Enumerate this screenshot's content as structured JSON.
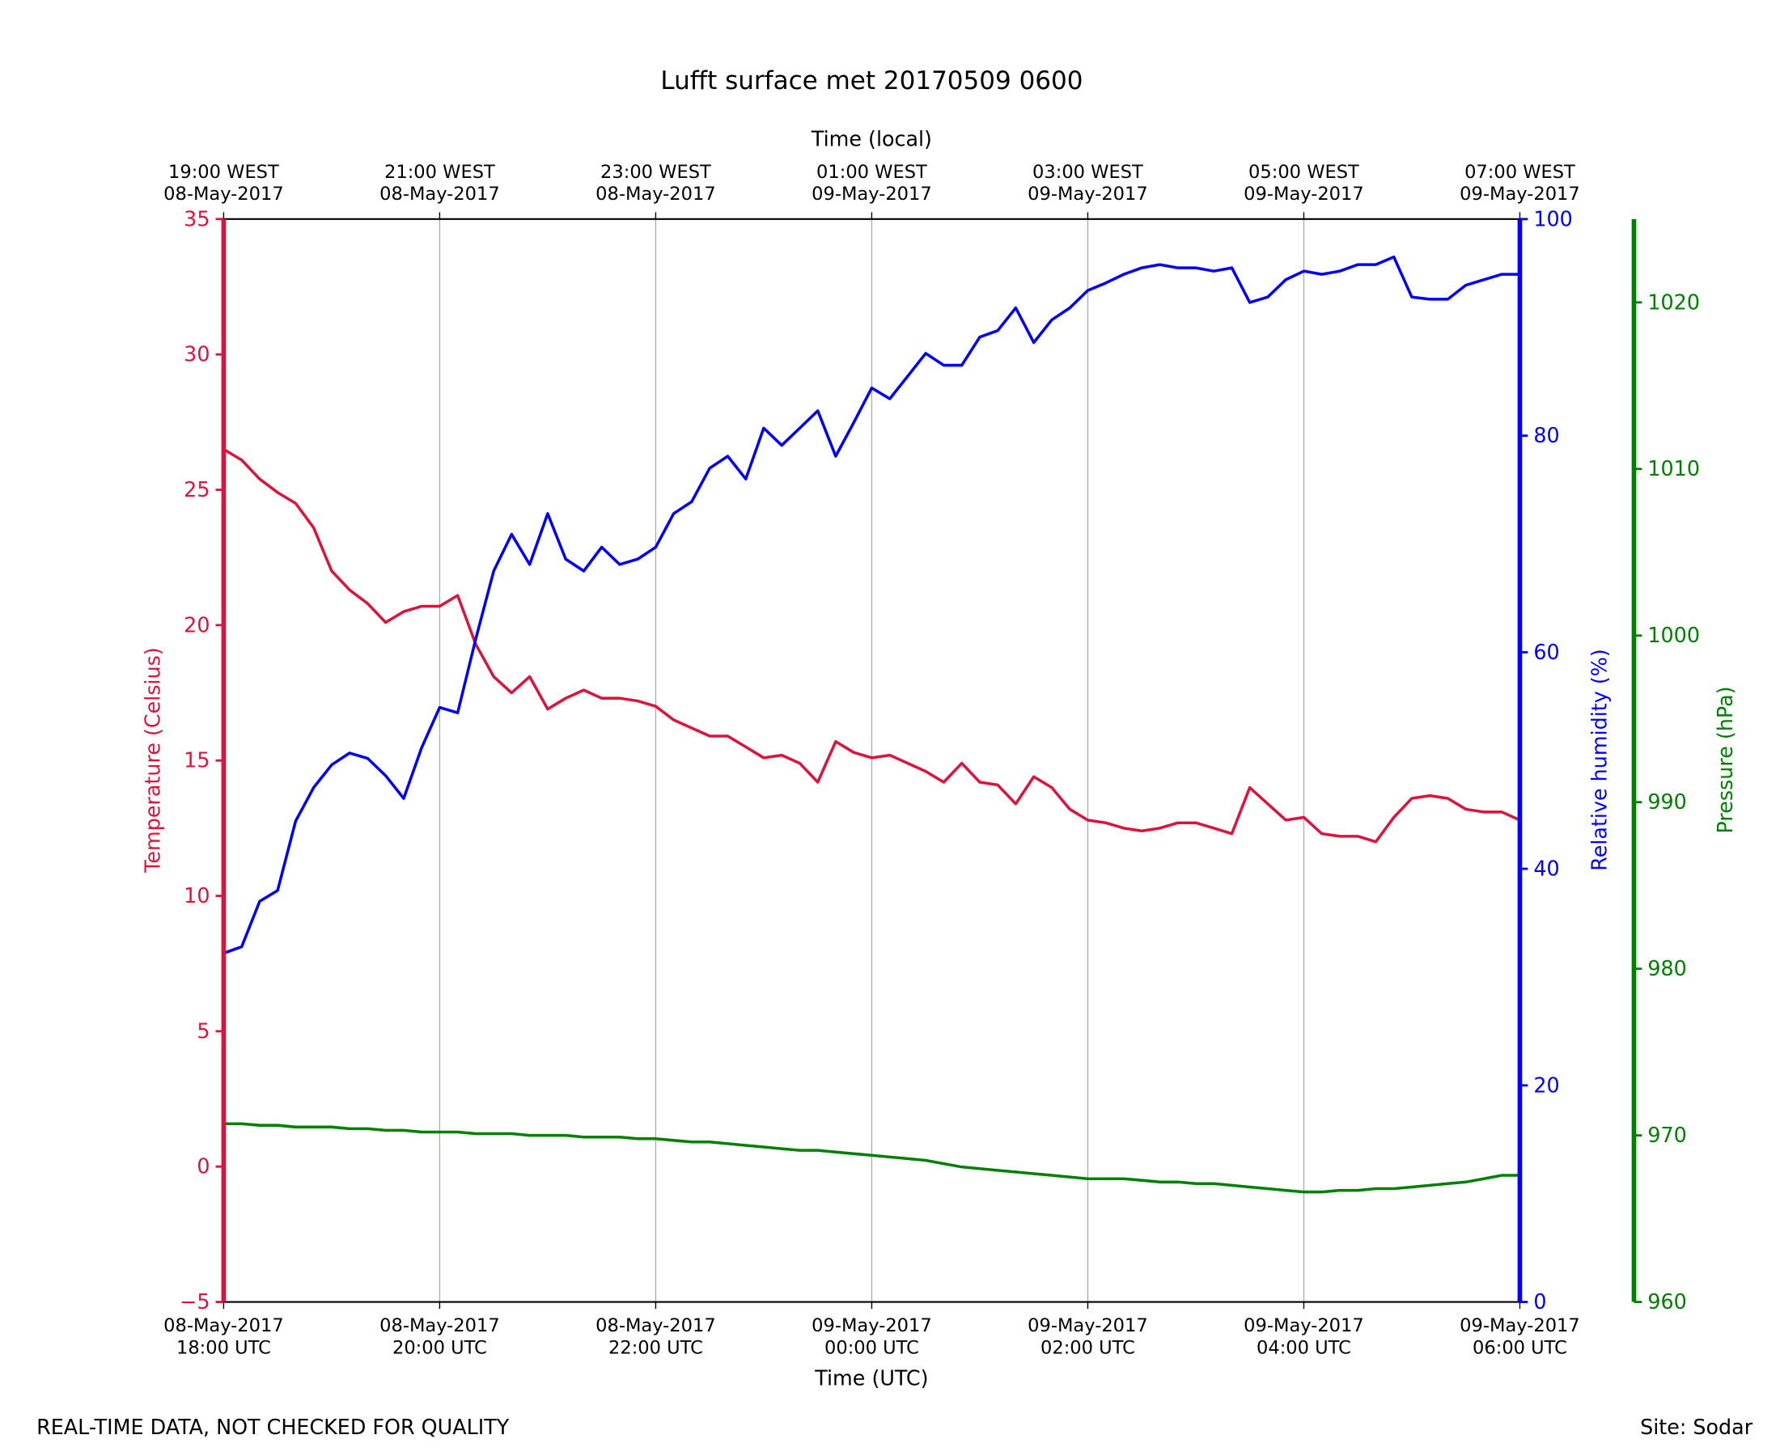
{
  "chart_data": {
    "type": "line",
    "title": "Lufft surface met 20170509 0600",
    "xlabel": "Time (UTC)",
    "x2label": "Time (local)",
    "ylabel": "Temperature (Celsius)",
    "y2label": "Relative humidity (%)",
    "y3label": "Pressure (hPa)",
    "footer_left": "REAL-TIME DATA, NOT CHECKED FOR QUALITY",
    "footer_right": "Site: Sodar",
    "x": [
      "2017-05-08 18:00",
      "2017-05-08 18:10",
      "2017-05-08 18:20",
      "2017-05-08 18:30",
      "2017-05-08 18:40",
      "2017-05-08 18:50",
      "2017-05-08 19:00",
      "2017-05-08 19:10",
      "2017-05-08 19:20",
      "2017-05-08 19:30",
      "2017-05-08 19:40",
      "2017-05-08 19:50",
      "2017-05-08 20:00",
      "2017-05-08 20:10",
      "2017-05-08 20:20",
      "2017-05-08 20:30",
      "2017-05-08 20:40",
      "2017-05-08 20:50",
      "2017-05-08 21:00",
      "2017-05-08 21:10",
      "2017-05-08 21:20",
      "2017-05-08 21:30",
      "2017-05-08 21:40",
      "2017-05-08 21:50",
      "2017-05-08 22:00",
      "2017-05-08 22:10",
      "2017-05-08 22:20",
      "2017-05-08 22:30",
      "2017-05-08 22:40",
      "2017-05-08 22:50",
      "2017-05-08 23:00",
      "2017-05-08 23:10",
      "2017-05-08 23:20",
      "2017-05-08 23:30",
      "2017-05-08 23:40",
      "2017-05-08 23:50",
      "2017-05-09 00:00",
      "2017-05-09 00:10",
      "2017-05-09 00:20",
      "2017-05-09 00:30",
      "2017-05-09 00:40",
      "2017-05-09 00:50",
      "2017-05-09 01:00",
      "2017-05-09 01:10",
      "2017-05-09 01:20",
      "2017-05-09 01:30",
      "2017-05-09 01:40",
      "2017-05-09 01:50",
      "2017-05-09 02:00",
      "2017-05-09 02:10",
      "2017-05-09 02:20",
      "2017-05-09 02:30",
      "2017-05-09 02:40",
      "2017-05-09 02:50",
      "2017-05-09 03:00",
      "2017-05-09 03:10",
      "2017-05-09 03:20",
      "2017-05-09 03:30",
      "2017-05-09 03:40",
      "2017-05-09 03:50",
      "2017-05-09 04:00",
      "2017-05-09 04:10",
      "2017-05-09 04:20",
      "2017-05-09 04:30",
      "2017-05-09 04:40",
      "2017-05-09 04:50",
      "2017-05-09 05:00",
      "2017-05-09 05:10",
      "2017-05-09 05:20",
      "2017-05-09 05:30",
      "2017-05-09 05:40",
      "2017-05-09 05:50",
      "2017-05-09 06:00"
    ],
    "series": [
      {
        "color": "#dc143c",
        "axis": "y",
        "values": [
          26.5,
          26.1,
          25.4,
          24.9,
          24.5,
          23.6,
          22.0,
          21.3,
          20.8,
          20.1,
          20.5,
          20.7,
          20.7,
          21.1,
          19.3,
          18.1,
          17.5,
          18.1,
          16.9,
          17.3,
          17.6,
          17.3,
          17.3,
          17.2,
          17.0,
          16.5,
          16.2,
          15.9,
          15.9,
          15.5,
          15.1,
          15.2,
          14.9,
          14.2,
          15.7,
          15.3,
          15.1,
          15.2,
          14.9,
          14.6,
          14.2,
          14.9,
          14.2,
          14.1,
          13.4,
          14.4,
          14.0,
          13.2,
          12.8,
          12.7,
          12.5,
          12.4,
          12.5,
          12.7,
          12.7,
          12.5,
          12.3,
          14.0,
          13.4,
          12.8,
          12.9,
          12.3,
          12.2,
          12.2,
          12.0,
          12.9,
          13.6,
          13.7,
          13.6,
          13.2,
          13.1,
          13.1,
          12.8
        ]
      },
      {
        "color": "#0000ff",
        "axis": "y2",
        "values": [
          32.2,
          32.8,
          37.0,
          38.0,
          44.4,
          47.5,
          49.6,
          50.7,
          50.2,
          48.6,
          46.5,
          51.2,
          54.9,
          54.4,
          61.2,
          67.5,
          70.9,
          68.1,
          72.8,
          68.6,
          67.5,
          69.7,
          68.1,
          68.6,
          69.7,
          72.8,
          73.9,
          77.0,
          78.1,
          76.0,
          80.7,
          79.1,
          80.7,
          82.3,
          78.1,
          81.2,
          84.4,
          83.4,
          85.5,
          87.6,
          86.5,
          86.5,
          89.1,
          89.7,
          91.8,
          88.6,
          90.7,
          91.8,
          93.4,
          94.1,
          94.9,
          95.5,
          95.8,
          95.5,
          95.5,
          95.2,
          95.5,
          92.3,
          92.8,
          94.4,
          95.2,
          94.9,
          95.2,
          95.8,
          95.8,
          96.5,
          92.8,
          92.6,
          92.6,
          93.9,
          94.4,
          94.9,
          94.9
        ]
      },
      {
        "color": "#008000",
        "axis": "y3",
        "values": [
          970.7,
          970.7,
          970.6,
          970.6,
          970.5,
          970.5,
          970.5,
          970.4,
          970.4,
          970.3,
          970.3,
          970.2,
          970.2,
          970.2,
          970.1,
          970.1,
          970.1,
          970.0,
          970.0,
          970.0,
          969.9,
          969.9,
          969.9,
          969.8,
          969.8,
          969.7,
          969.6,
          969.6,
          969.5,
          969.4,
          969.3,
          969.2,
          969.1,
          969.1,
          969.0,
          968.9,
          968.8,
          968.7,
          968.6,
          968.5,
          968.3,
          968.1,
          968.0,
          967.9,
          967.8,
          967.7,
          967.6,
          967.5,
          967.4,
          967.4,
          967.4,
          967.3,
          967.2,
          967.2,
          967.1,
          967.1,
          967.0,
          966.9,
          966.8,
          966.7,
          966.6,
          966.6,
          966.7,
          966.7,
          966.8,
          966.8,
          966.9,
          967.0,
          967.1,
          967.2,
          967.4,
          967.6,
          967.6
        ]
      }
    ],
    "xlim": [
      "2017-05-08 18:00",
      "2017-05-09 06:00"
    ],
    "xticks": [
      {
        "value": "2017-05-08 18:00",
        "label": "08-May-2017\n18:00 UTC"
      },
      {
        "value": "2017-05-08 20:00",
        "label": "08-May-2017\n20:00 UTC"
      },
      {
        "value": "2017-05-08 22:00",
        "label": "08-May-2017\n22:00 UTC"
      },
      {
        "value": "2017-05-09 00:00",
        "label": "09-May-2017\n00:00 UTC"
      },
      {
        "value": "2017-05-09 02:00",
        "label": "09-May-2017\n02:00 UTC"
      },
      {
        "value": "2017-05-09 04:00",
        "label": "09-May-2017\n04:00 UTC"
      },
      {
        "value": "2017-05-09 06:00",
        "label": "09-May-2017\n06:00 UTC"
      }
    ],
    "x2ticks": [
      {
        "value": "2017-05-08 18:00",
        "label": "19:00 WEST\n08-May-2017"
      },
      {
        "value": "2017-05-08 20:00",
        "label": "21:00 WEST\n08-May-2017"
      },
      {
        "value": "2017-05-08 22:00",
        "label": "23:00 WEST\n08-May-2017"
      },
      {
        "value": "2017-05-09 00:00",
        "label": "01:00 WEST\n09-May-2017"
      },
      {
        "value": "2017-05-09 02:00",
        "label": "03:00 WEST\n09-May-2017"
      },
      {
        "value": "2017-05-09 04:00",
        "label": "05:00 WEST\n09-May-2017"
      },
      {
        "value": "2017-05-09 06:00",
        "label": "07:00 WEST\n09-May-2017"
      }
    ],
    "ylim": [
      -5,
      35
    ],
    "yticks": [
      {
        "value": -5,
        "label": "−5"
      },
      0,
      5,
      10,
      15,
      20,
      25,
      30,
      35
    ],
    "y2lim": [
      0,
      100
    ],
    "y2ticks": [
      0,
      20,
      40,
      60,
      80,
      100
    ],
    "y3lim": [
      960,
      1025
    ],
    "y3ticks": [
      960,
      970,
      980,
      990,
      1000,
      1010,
      1020
    ],
    "grid": true
  }
}
